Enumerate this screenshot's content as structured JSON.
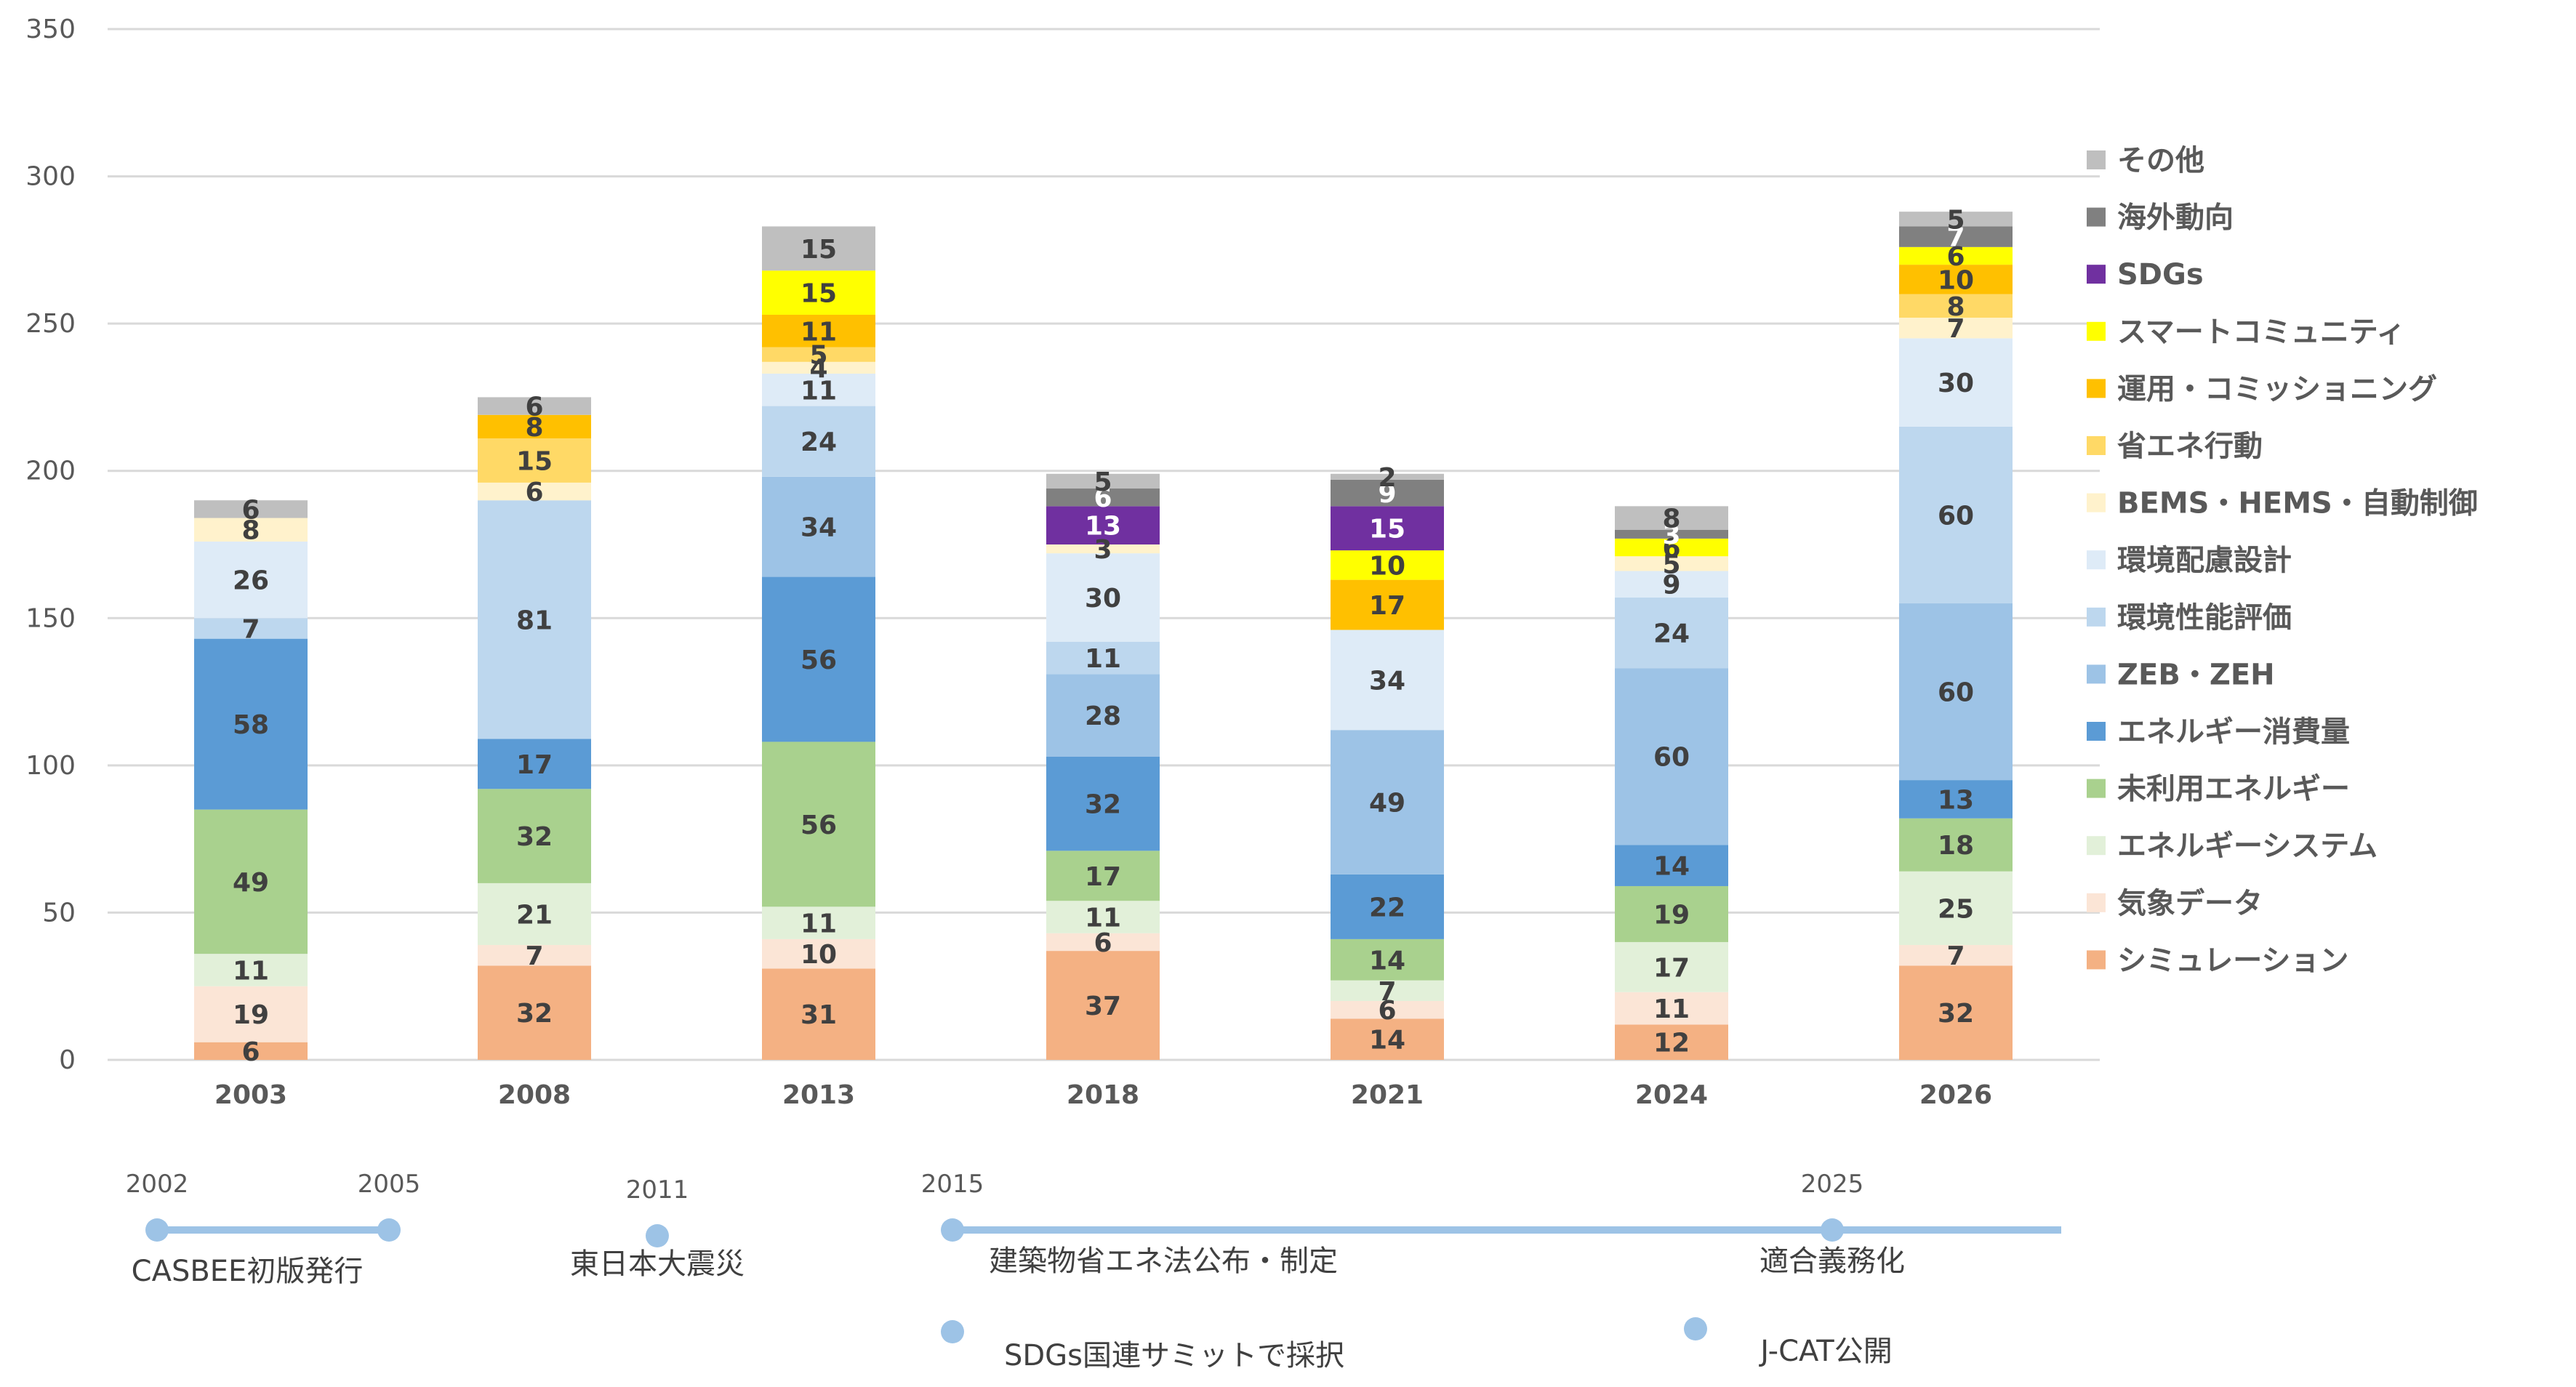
{
  "chart_data": {
    "type": "bar",
    "stacked": true,
    "categories": [
      "2003",
      "2008",
      "2013",
      "2018",
      "2021",
      "2024",
      "2026"
    ],
    "ylim": [
      0,
      350
    ],
    "y_ticks": [
      "0",
      "50",
      "100",
      "150",
      "200",
      "250",
      "300",
      "350"
    ],
    "grid": true,
    "legend_position": "right",
    "series": [
      {
        "name": "シミュレーション",
        "color": "#F4B183",
        "label_color": "#404040",
        "values": [
          6,
          32,
          31,
          37,
          14,
          12,
          32
        ]
      },
      {
        "name": "気象データ",
        "color": "#FBE5D6",
        "label_color": "#404040",
        "values": [
          19,
          7,
          10,
          6,
          6,
          11,
          7
        ]
      },
      {
        "name": "エネルギーシステム",
        "color": "#E2F0D9",
        "label_color": "#404040",
        "values": [
          11,
          21,
          11,
          11,
          7,
          17,
          25
        ]
      },
      {
        "name": "未利用エネルギー",
        "color": "#A9D18E",
        "label_color": "#404040",
        "values": [
          49,
          32,
          56,
          17,
          14,
          19,
          18
        ]
      },
      {
        "name": "エネルギー消費量",
        "color": "#5B9BD5",
        "label_color": "#404040",
        "values": [
          58,
          17,
          56,
          32,
          22,
          14,
          13
        ]
      },
      {
        "name": "ZEB・ZEH",
        "color": "#9DC3E6",
        "label_color": "#404040",
        "values": [
          0,
          0,
          34,
          28,
          49,
          60,
          60
        ]
      },
      {
        "name": "環境性能評価",
        "color": "#BDD7EE",
        "label_color": "#404040",
        "values": [
          7,
          81,
          24,
          11,
          0,
          24,
          60
        ]
      },
      {
        "name": "環境配慮設計",
        "color": "#DEEBF7",
        "label_color": "#404040",
        "values": [
          26,
          0,
          11,
          30,
          34,
          9,
          30
        ]
      },
      {
        "name": "BEMS・HEMS・自動制御",
        "color": "#FFF2CC",
        "label_color": "#404040",
        "values": [
          8,
          6,
          4,
          3,
          0,
          5,
          7
        ]
      },
      {
        "name": "省エネ行動",
        "color": "#FFD966",
        "label_color": "#404040",
        "values": [
          0,
          15,
          5,
          0,
          0,
          0,
          8
        ]
      },
      {
        "name": "運用・コミッショニング",
        "color": "#FFC000",
        "label_color": "#404040",
        "values": [
          0,
          8,
          11,
          0,
          17,
          0,
          10
        ]
      },
      {
        "name": "スマートコミュニティ",
        "color": "#FFFF00",
        "label_color": "#404040",
        "values": [
          0,
          0,
          15,
          0,
          10,
          6,
          6
        ]
      },
      {
        "name": "SDGs",
        "color": "#7030A0",
        "label_color": "#FFFFFF",
        "values": [
          0,
          0,
          0,
          13,
          15,
          0,
          0
        ]
      },
      {
        "name": "海外動向",
        "color": "#808080",
        "label_color": "#FFFFFF",
        "values": [
          0,
          0,
          0,
          6,
          9,
          3,
          7
        ]
      },
      {
        "name": "その他",
        "color": "#BFBFBF",
        "label_color": "#404040",
        "values": [
          6,
          6,
          15,
          5,
          2,
          8,
          5
        ]
      }
    ],
    "axis_label_color": "#595959",
    "grid_color": "#D9D9D9"
  },
  "timeline": {
    "line_color": "#9DC3E6",
    "segments": [
      {
        "from": "2002",
        "to": "2005"
      },
      {
        "from": "2015",
        "to": "end"
      }
    ],
    "events": [
      {
        "year": "2002",
        "text": ""
      },
      {
        "year": "2005",
        "text": "CASBEE初版発行"
      },
      {
        "year": "2011",
        "text": "東日本大震災"
      },
      {
        "year": "2015",
        "text": "建築物省エネ法公布・制定"
      },
      {
        "year": "",
        "text": "SDGs国連サミットで採択"
      },
      {
        "year": "2025",
        "text": "適合義務化"
      },
      {
        "year": "",
        "text": "J-CAT公開"
      }
    ]
  }
}
